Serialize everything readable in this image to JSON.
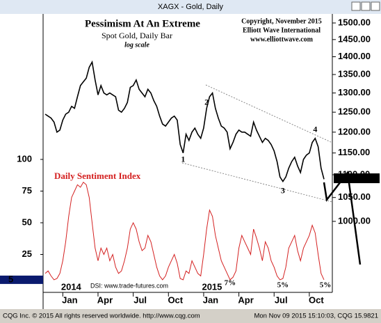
{
  "window": {
    "title": "XAGX - Gold, Daily"
  },
  "footer": {
    "left": "CQG Inc. © 2015 All rights reserved worldwide. http://www.cqg.com",
    "right": "Mon Nov 09 2015 15:10:03, CQG 15.9821"
  },
  "chart_data": [
    {
      "type": "line",
      "title": "Pessimism At An Extreme",
      "subtitle": "Spot Gold, Daily Bar",
      "scale_note": "log scale",
      "credits": [
        "Copyright, November 2015",
        "Elliott Wave International",
        "www.elliottwave.com"
      ],
      "wave_labels": [
        "1",
        "2",
        "3",
        "4"
      ],
      "log_scale": true,
      "xlim": [
        0,
        95
      ],
      "xticks": [
        {
          "value": 6,
          "label": "Jan"
        },
        {
          "value": 18,
          "label": "Apr"
        },
        {
          "value": 30,
          "label": "Jul"
        },
        {
          "value": 42,
          "label": "Oct"
        },
        {
          "value": 54,
          "label": "Jan"
        },
        {
          "value": 66,
          "label": "Apr"
        },
        {
          "value": 78,
          "label": "Jul"
        },
        {
          "value": 90,
          "label": "Oct"
        }
      ],
      "years": [
        "2014",
        "2015"
      ],
      "ylim": [
        1000,
        1500
      ],
      "yticks": [
        {
          "value": 1000,
          "label": "1000.00"
        },
        {
          "value": 1050,
          "label": "1050.00"
        },
        {
          "value": 1100,
          "label": "1100.00"
        },
        {
          "value": 1150,
          "label": "1150.00"
        },
        {
          "value": 1200,
          "label": "1200.00"
        },
        {
          "value": 1250,
          "label": "1250.00"
        },
        {
          "value": 1300,
          "label": "1300.00"
        },
        {
          "value": 1350,
          "label": "1350.00"
        },
        {
          "value": 1400,
          "label": "1400.00"
        },
        {
          "value": 1450,
          "label": "1450.00"
        },
        {
          "value": 1500,
          "label": "1500.00"
        }
      ],
      "last_price": 1092.06,
      "series": [
        {
          "name": "Spot Gold",
          "color": "#000000",
          "values": [
            1245,
            1240,
            1235,
            1225,
            1200,
            1205,
            1230,
            1245,
            1250,
            1265,
            1260,
            1290,
            1320,
            1330,
            1340,
            1370,
            1385,
            1335,
            1295,
            1320,
            1300,
            1295,
            1300,
            1295,
            1290,
            1255,
            1250,
            1260,
            1275,
            1315,
            1320,
            1335,
            1310,
            1300,
            1290,
            1310,
            1300,
            1280,
            1265,
            1240,
            1220,
            1215,
            1225,
            1235,
            1240,
            1230,
            1170,
            1150,
            1195,
            1180,
            1200,
            1210,
            1195,
            1185,
            1210,
            1260,
            1290,
            1300,
            1260,
            1235,
            1215,
            1210,
            1200,
            1160,
            1175,
            1195,
            1205,
            1200,
            1200,
            1195,
            1190,
            1225,
            1205,
            1190,
            1175,
            1185,
            1180,
            1170,
            1155,
            1130,
            1095,
            1085,
            1095,
            1115,
            1130,
            1140,
            1120,
            1105,
            1135,
            1145,
            1150,
            1175,
            1185,
            1165,
            1115,
            1090
          ]
        }
      ]
    },
    {
      "type": "line",
      "title": "Daily Sentiment Index",
      "source": "DSI: www.trade-futures.com",
      "value_notes": [
        "7%",
        "5%",
        "5%"
      ],
      "ylim": [
        0,
        100
      ],
      "yticks": [
        5,
        25,
        50,
        75,
        100
      ],
      "series": [
        {
          "name": "Daily Sentiment Index",
          "color": "#d42020",
          "values": [
            10,
            12,
            8,
            5,
            6,
            10,
            20,
            35,
            55,
            70,
            75,
            80,
            78,
            82,
            80,
            70,
            50,
            30,
            20,
            30,
            25,
            30,
            20,
            25,
            15,
            10,
            12,
            20,
            30,
            45,
            50,
            45,
            35,
            28,
            30,
            40,
            35,
            25,
            15,
            8,
            5,
            8,
            15,
            20,
            25,
            18,
            6,
            5,
            12,
            10,
            20,
            15,
            10,
            8,
            25,
            45,
            60,
            55,
            40,
            30,
            20,
            15,
            10,
            5,
            7,
            12,
            30,
            40,
            35,
            30,
            25,
            45,
            38,
            30,
            20,
            35,
            30,
            20,
            15,
            8,
            5,
            6,
            15,
            30,
            35,
            40,
            28,
            20,
            30,
            35,
            40,
            48,
            42,
            25,
            10,
            5
          ]
        }
      ]
    }
  ]
}
